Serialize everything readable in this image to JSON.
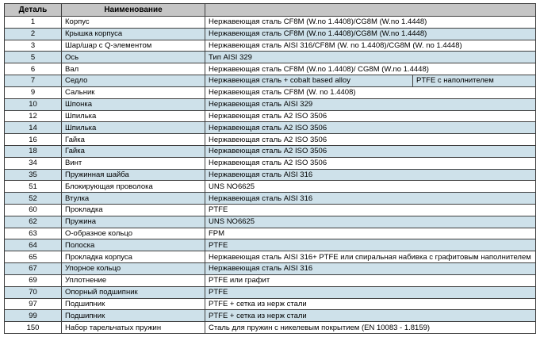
{
  "colors": {
    "header_bg": "#c5c5c5",
    "row_alt_bg": "#cee1ea",
    "border": "#3f3f3f"
  },
  "table": {
    "col_headers": {
      "part": "Деталь",
      "name": "Наименование",
      "material": ""
    },
    "rows": [
      {
        "part": "1",
        "name": "Корпус",
        "materials": [
          "Нержавеющая сталь CF8M (W.no 1.4408)/CG8M (W.no 1.4448)"
        ]
      },
      {
        "part": "2",
        "name": "Крышка корпуса",
        "materials": [
          "Нержавеющая сталь CF8M (W.no 1.4408)/CG8M (W.no 1.4448)"
        ]
      },
      {
        "part": "3",
        "name": "Шар/шар с Q-элементом",
        "materials": [
          "Нержавеющая сталь AISI 316/CF8M (W. no 1.4408)/CG8M (W. no 1.4448)"
        ]
      },
      {
        "part": "5",
        "name": "Ось",
        "materials": [
          "Тип AISI 329"
        ]
      },
      {
        "part": "6",
        "name": "Вал",
        "materials": [
          "Нержавеющая сталь CF8M (W.no 1.4408)/ CG8M (W.no 1.4448)"
        ]
      },
      {
        "part": "7",
        "name": "Седло",
        "materials": [
          "Нержавеющая сталь + cobalt based alloy",
          "PTFE с наполнителем"
        ]
      },
      {
        "part": "9",
        "name": "Сальник",
        "materials": [
          "Нержавеющая сталь CF8M (W. no 1.4408)"
        ]
      },
      {
        "part": "10",
        "name": "Шпонка",
        "materials": [
          "Нержавеющая сталь AISI 329"
        ]
      },
      {
        "part": "12",
        "name": "Шпилька",
        "materials": [
          "Нержавеющая сталь A2 ISO 3506"
        ]
      },
      {
        "part": "14",
        "name": "Шпилька",
        "materials": [
          "Нержавеющая сталь A2 ISO 3506"
        ]
      },
      {
        "part": "16",
        "name": "Гайка",
        "materials": [
          "Нержавеющая сталь A2 ISO 3506"
        ]
      },
      {
        "part": "18",
        "name": "Гайка",
        "materials": [
          "Нержавеющая сталь A2 ISO 3506"
        ]
      },
      {
        "part": "34",
        "name": "Винт",
        "materials": [
          "Нержавеющая сталь A2 ISO 3506"
        ]
      },
      {
        "part": "35",
        "name": "Пружинная шайба",
        "materials": [
          "Нержавеющая сталь AISI 316"
        ]
      },
      {
        "part": "51",
        "name": "Блокирующая проволока",
        "materials": [
          "UNS NO6625"
        ]
      },
      {
        "part": "52",
        "name": "Втулка",
        "materials": [
          "Нержавеющая сталь AISI 316"
        ]
      },
      {
        "part": "60",
        "name": "Прокладка",
        "materials": [
          "PTFE"
        ]
      },
      {
        "part": "62",
        "name": "Пружина",
        "materials": [
          "UNS NO6625"
        ]
      },
      {
        "part": "63",
        "name": "О-образное кольцо",
        "materials": [
          "FPM"
        ]
      },
      {
        "part": "64",
        "name": "Полоска",
        "materials": [
          "PTFE"
        ]
      },
      {
        "part": "65",
        "name": "Прокладка корпуса",
        "materials": [
          "Нержавеющая сталь AISI 316+ PTFE или спиральная набивка с графитовым наполнителем"
        ]
      },
      {
        "part": "67",
        "name": "Упорное кольцо",
        "materials": [
          "Нержавеющая сталь AISI 316"
        ]
      },
      {
        "part": "69",
        "name": "Уплотнение",
        "materials": [
          "PTFE или графит"
        ]
      },
      {
        "part": "70",
        "name": "Опорный подшипник",
        "materials": [
          "PTFE"
        ]
      },
      {
        "part": "97",
        "name": "Подшипник",
        "materials": [
          "PTFE + сетка из нерж стали"
        ]
      },
      {
        "part": "99",
        "name": "Подшипник",
        "materials": [
          "PTFE + сетка из нерж стали"
        ]
      },
      {
        "part": "150",
        "name": "Набор тарельчатых пружин",
        "materials": [
          "Сталь для пружин с никелевым покрытием (EN 10083 - 1.8159)"
        ]
      }
    ]
  }
}
